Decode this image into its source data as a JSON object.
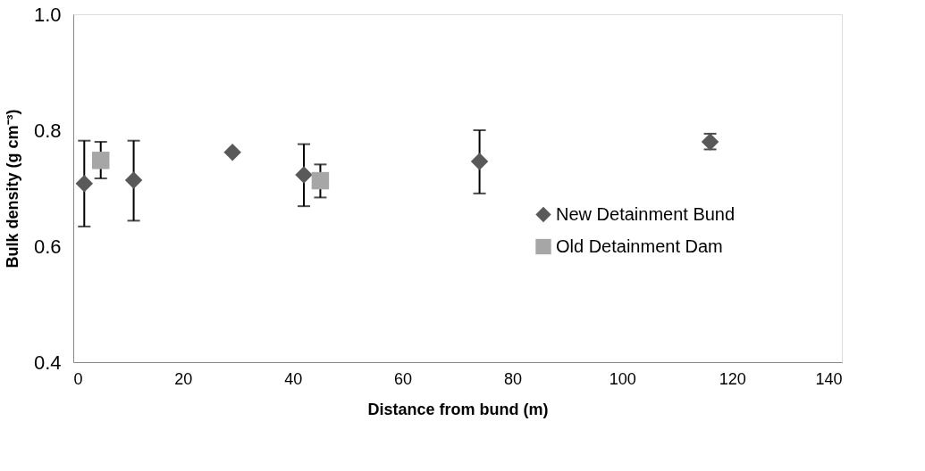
{
  "chart_data": {
    "type": "scatter",
    "xlabel": "Distance from bund (m)",
    "ylabel": "Bulk density (g cm⁻³)",
    "xlim": [
      0,
      140
    ],
    "xticks": [
      0,
      20,
      40,
      60,
      80,
      100,
      120,
      140
    ],
    "ylim": [
      0.4,
      1.0
    ],
    "yticks": [
      0.4,
      0.6,
      0.8,
      {
        "value": 1.0,
        "label": "1.0"
      }
    ],
    "grid": false,
    "legend": "right",
    "series": [
      {
        "name": "New Detainment Bund",
        "color": "#595959",
        "marker": "diamond",
        "x": [
          2,
          11,
          29,
          42,
          74,
          116
        ],
        "values": [
          0.708,
          0.714,
          0.762,
          0.723,
          0.746,
          0.78
        ],
        "errors": [
          [
            0.634,
            0.782
          ],
          [
            0.644,
            0.782
          ],
          null,
          [
            0.669,
            0.776
          ],
          [
            0.691,
            0.8
          ],
          [
            0.767,
            0.794
          ]
        ]
      },
      {
        "name": "Old Detainment Dam",
        "color": "#a6a6a6",
        "marker": "square",
        "x": [
          5,
          45
        ],
        "values": [
          0.748,
          0.713
        ],
        "errors": [
          [
            0.717,
            0.78
          ],
          [
            0.684,
            0.741
          ]
        ]
      }
    ]
  }
}
